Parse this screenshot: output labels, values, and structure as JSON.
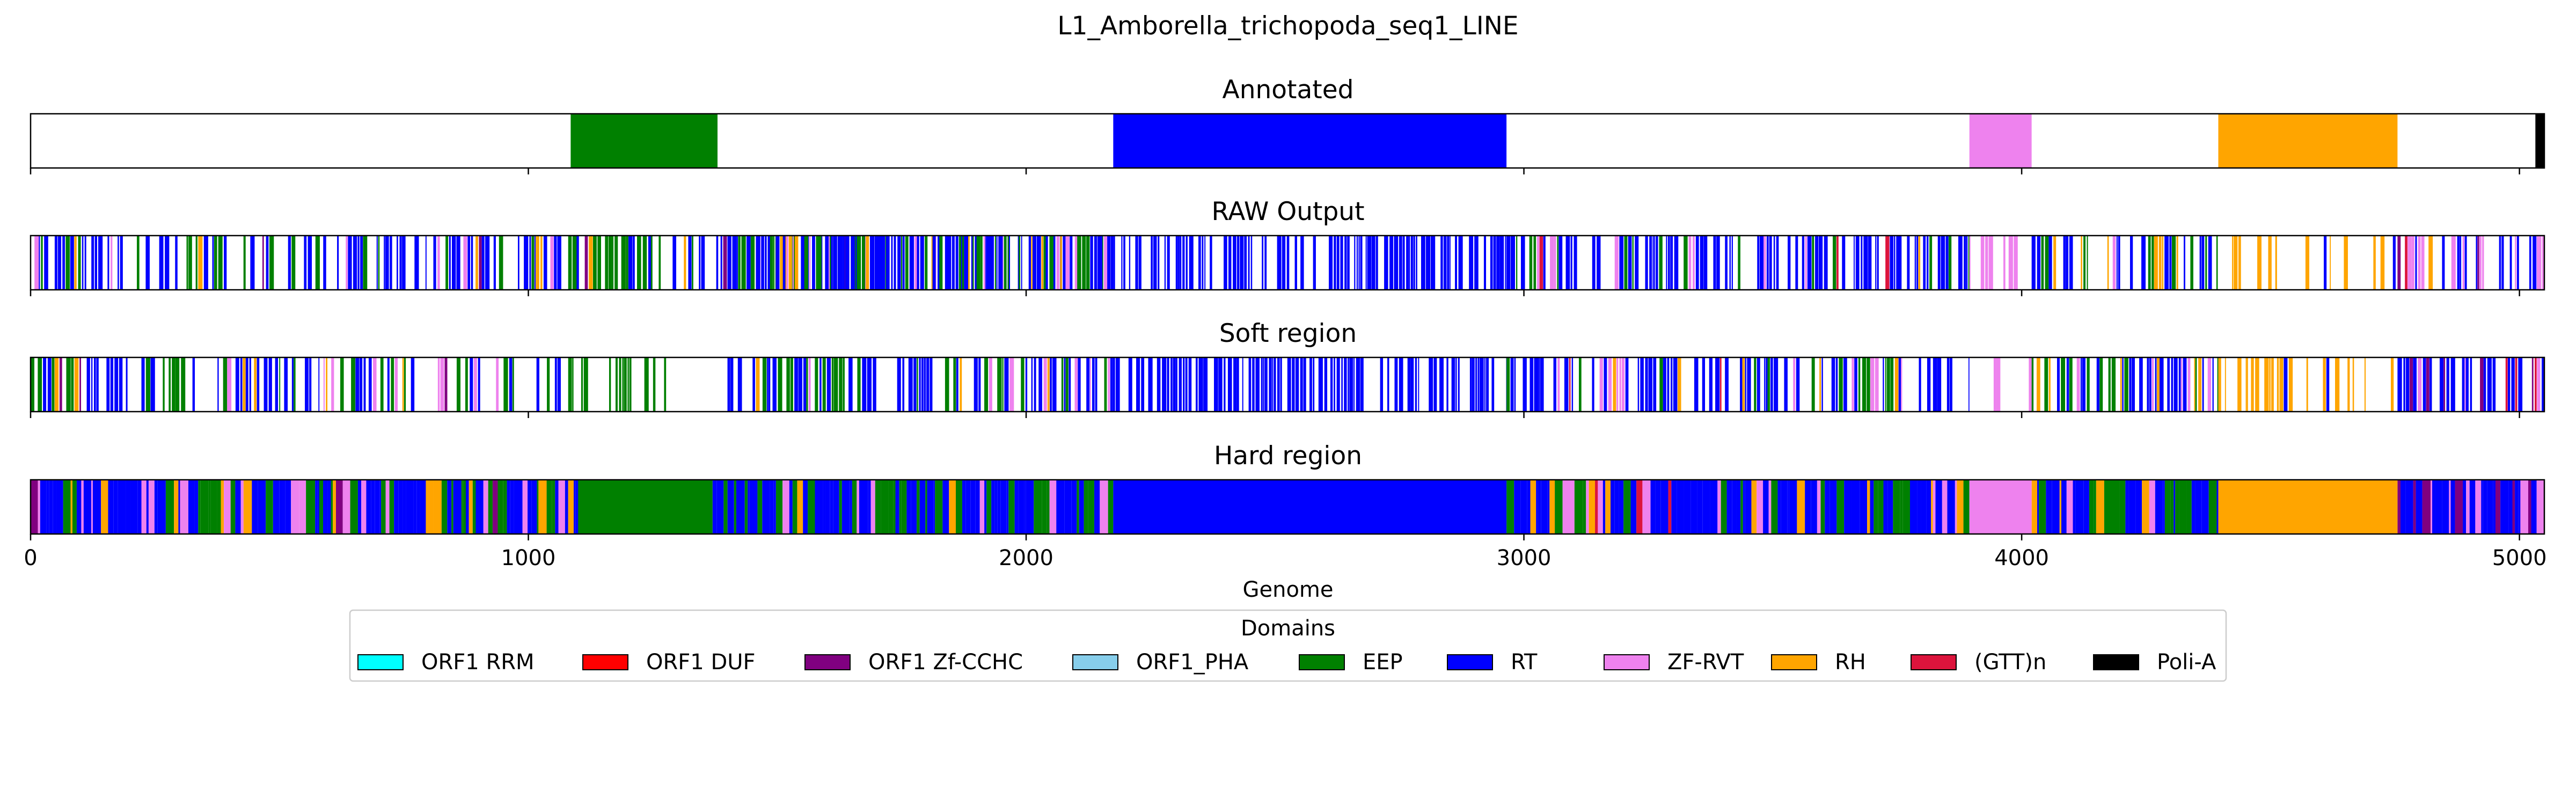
{
  "figure": {
    "title": "L1_Amborella_trichopoda_seq1_LINE",
    "xlabel": "Genome"
  },
  "colors": {
    "ORF1 RRM": "#00ffff",
    "ORF1 DUF": "#ff0000",
    "ORF1 Zf-CCHC": "#800080",
    "ORF1_PHA": "#87ceeb",
    "EEP": "#008000",
    "RT": "#0000ff",
    "ZF-RVT": "#ee82ee",
    "RH": "#ffa500",
    "(GTT)n": "#dc143c",
    "Poli-A": "#000000"
  },
  "legend": {
    "title": "Domains",
    "placement": "lower-center",
    "items": [
      "ORF1 RRM",
      "ORF1 DUF",
      "ORF1 Zf-CCHC",
      "ORF1_PHA",
      "EEP",
      "RT",
      "ZF-RVT",
      "RH",
      "(GTT)n",
      "Poli-A"
    ]
  },
  "chart_data": [
    {
      "type": "bar",
      "title": "Annotated",
      "xlim": [
        0,
        5050
      ],
      "x_ticks": [
        0,
        1000,
        2000,
        3000,
        4000,
        5000
      ],
      "segments": [
        {
          "domain": "EEP",
          "start": 1085,
          "end": 1380
        },
        {
          "domain": "RT",
          "start": 2175,
          "end": 2965
        },
        {
          "domain": "ZF-RVT",
          "start": 3895,
          "end": 4020
        },
        {
          "domain": "RH",
          "start": 4395,
          "end": 4755
        },
        {
          "domain": "Poli-A",
          "start": 5032,
          "end": 5050
        }
      ]
    },
    {
      "type": "bar",
      "title": "RAW Output",
      "xlim": [
        0,
        5050
      ],
      "x_ticks": [
        0,
        1000,
        2000,
        3000,
        4000,
        5000
      ],
      "regions": [
        {
          "start": 0,
          "end": 2175,
          "composition": {
            "RT": 0.5,
            "EEP": 0.2,
            "ZF-RVT": 0.1,
            "RH": 0.05,
            "ORF1 Zf-CCHC": 0.03
          },
          "empty_fraction": 0.45
        },
        {
          "start": 1080,
          "end": 1280,
          "composition": {
            "EEP": 0.9
          },
          "empty_fraction": 0.55
        },
        {
          "start": 1310,
          "end": 1400,
          "composition": {},
          "empty_fraction": 1.0
        },
        {
          "start": 1400,
          "end": 2175,
          "composition": {
            "RT": 0.55,
            "EEP": 0.3,
            "ZF-RVT": 0.08,
            "RH": 0.05
          },
          "empty_fraction": 0.35
        },
        {
          "start": 2175,
          "end": 2965,
          "composition": {
            "RT": 0.95
          },
          "empty_fraction": 0.3
        },
        {
          "start": 2965,
          "end": 3895,
          "composition": {
            "RT": 0.6,
            "EEP": 0.15,
            "ZF-RVT": 0.1,
            "RH": 0.06,
            "(GTT)n": 0.03
          },
          "empty_fraction": 0.35
        },
        {
          "start": 3895,
          "end": 4020,
          "composition": {
            "ZF-RVT": 0.9
          },
          "empty_fraction": 0.7
        },
        {
          "start": 4020,
          "end": 4395,
          "composition": {
            "RT": 0.45,
            "EEP": 0.3,
            "RH": 0.15,
            "ZF-RVT": 0.05
          },
          "empty_fraction": 0.35
        },
        {
          "start": 4395,
          "end": 4755,
          "composition": {
            "RH": 0.85,
            "RT": 0.1
          },
          "empty_fraction": 0.65
        },
        {
          "start": 4755,
          "end": 5050,
          "composition": {
            "RT": 0.5,
            "ZF-RVT": 0.25,
            "ORF1 Zf-CCHC": 0.1,
            "(GTT)n": 0.05,
            "RH": 0.05
          },
          "empty_fraction": 0.3
        }
      ]
    },
    {
      "type": "bar",
      "title": "Soft region",
      "xlim": [
        0,
        5050
      ],
      "x_ticks": [
        0,
        1000,
        2000,
        3000,
        4000,
        5000
      ],
      "regions": [
        {
          "start": 0,
          "end": 1080,
          "composition": {
            "RT": 0.5,
            "EEP": 0.2,
            "ZF-RVT": 0.1,
            "RH": 0.05,
            "ORF1 Zf-CCHC": 0.03
          },
          "empty_fraction": 0.45
        },
        {
          "start": 1080,
          "end": 1280,
          "composition": {
            "EEP": 0.9
          },
          "empty_fraction": 0.55
        },
        {
          "start": 1310,
          "end": 1400,
          "composition": {},
          "empty_fraction": 1.0
        },
        {
          "start": 1400,
          "end": 2175,
          "composition": {
            "RT": 0.55,
            "EEP": 0.3,
            "ZF-RVT": 0.08,
            "RH": 0.05
          },
          "empty_fraction": 0.35
        },
        {
          "start": 2175,
          "end": 2965,
          "composition": {
            "RT": 0.95
          },
          "empty_fraction": 0.3
        },
        {
          "start": 2965,
          "end": 3895,
          "composition": {
            "RT": 0.6,
            "EEP": 0.15,
            "ZF-RVT": 0.1,
            "RH": 0.06,
            "(GTT)n": 0.03
          },
          "empty_fraction": 0.35
        },
        {
          "start": 3895,
          "end": 4020,
          "composition": {
            "ZF-RVT": 0.9
          },
          "empty_fraction": 0.7
        },
        {
          "start": 4020,
          "end": 4395,
          "composition": {
            "RT": 0.45,
            "EEP": 0.3,
            "RH": 0.15,
            "ZF-RVT": 0.05
          },
          "empty_fraction": 0.35
        },
        {
          "start": 4395,
          "end": 4755,
          "composition": {
            "RH": 0.85,
            "RT": 0.1
          },
          "empty_fraction": 0.65
        },
        {
          "start": 4755,
          "end": 5050,
          "composition": {
            "RT": 0.5,
            "ZF-RVT": 0.25,
            "ORF1 Zf-CCHC": 0.1,
            "(GTT)n": 0.05,
            "RH": 0.05
          },
          "empty_fraction": 0.3
        }
      ]
    },
    {
      "type": "bar",
      "title": "Hard region",
      "xlim": [
        0,
        5050
      ],
      "x_ticks": [
        0,
        1000,
        2000,
        3000,
        4000,
        5000
      ],
      "solid_blocks": [
        {
          "domain": "EEP",
          "start": 1100,
          "end": 1370
        },
        {
          "domain": "RT",
          "start": 2175,
          "end": 2965
        },
        {
          "domain": "ZF-RVT",
          "start": 3895,
          "end": 4020
        },
        {
          "domain": "RH",
          "start": 4395,
          "end": 4755
        }
      ],
      "regions": [
        {
          "start": 0,
          "end": 1100,
          "composition": {
            "RT": 0.5,
            "EEP": 0.25,
            "ZF-RVT": 0.12,
            "RH": 0.08,
            "ORF1 Zf-CCHC": 0.03
          }
        },
        {
          "start": 1370,
          "end": 2175,
          "composition": {
            "RT": 0.55,
            "EEP": 0.25,
            "ZF-RVT": 0.1,
            "RH": 0.08
          }
        },
        {
          "start": 2965,
          "end": 3895,
          "composition": {
            "RT": 0.6,
            "EEP": 0.15,
            "ZF-RVT": 0.1,
            "RH": 0.1,
            "(GTT)n": 0.03
          }
        },
        {
          "start": 4020,
          "end": 4395,
          "composition": {
            "RT": 0.45,
            "EEP": 0.3,
            "RH": 0.15,
            "ZF-RVT": 0.05
          }
        },
        {
          "start": 4755,
          "end": 5050,
          "composition": {
            "RT": 0.5,
            "ZF-RVT": 0.25,
            "ORF1 Zf-CCHC": 0.1,
            "(GTT)n": 0.05,
            "RH": 0.05
          }
        }
      ]
    }
  ]
}
